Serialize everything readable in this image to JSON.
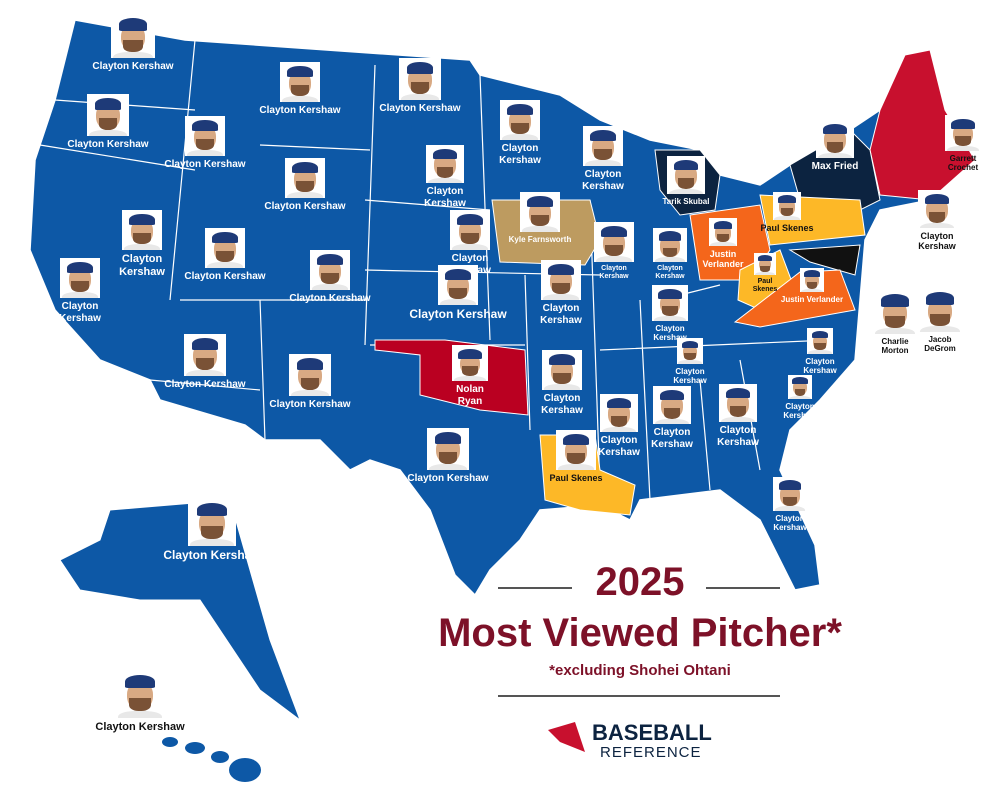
{
  "title": {
    "year": "2025",
    "headline": "Most Viewed Pitcher*",
    "note": "*excluding Shohei Ohtani"
  },
  "logo": {
    "line1": "BASEBALL",
    "line2": "REFERENCE"
  },
  "labels": [
    "Clayton Kershaw",
    "Clayton Kershaw",
    "Clayton Kershaw",
    "Clayton Kershaw",
    "Clayton Kershaw",
    "Clayton Kershaw",
    "Clayton Kershaw",
    "Clayton Kershaw",
    "Clayton Kershaw",
    "Tarik Skubal",
    "Max Fried",
    "Garrett Crochet",
    "Kyle Farnsworth",
    "Clayton Kershaw",
    "Clayton Kershaw",
    "Clayton Kershaw",
    "Clayton Kershaw",
    "Clayton Kershaw",
    "Clayton Kershaw",
    "Clayton Kershaw",
    "Clayton Kershaw",
    "Justin Verlander",
    "Paul Skenes",
    "Paul Skenes",
    "Justin Verlander",
    "Clayton Kershaw",
    "Charlie Morton",
    "Jacob DeGrom",
    "Clayton Kershaw",
    "Clayton Kershaw",
    "Clayton Kershaw",
    "Clayton Kershaw",
    "Clayton Kershaw",
    "Clayton Kershaw",
    "Clayton Kershaw",
    "Nolan Ryan",
    "Clayton Kershaw",
    "Clayton Kershaw",
    "Clayton Kershaw",
    "Clayton Kershaw",
    "Clayton Kershaw",
    "Paul Skenes",
    "Clayton Kershaw",
    "Clayton Kershaw",
    "Clayton Kershaw"
  ]
}
